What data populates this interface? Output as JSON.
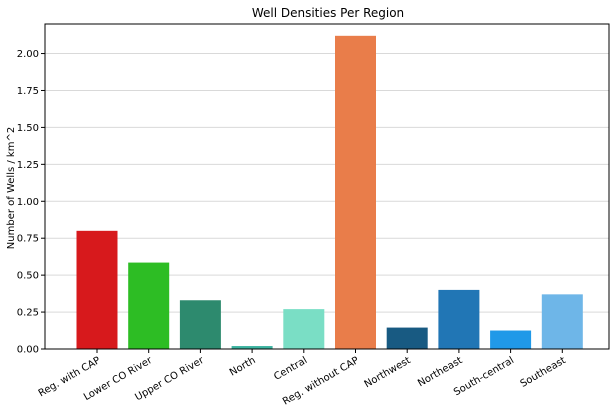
{
  "chart_data": {
    "type": "bar",
    "title": "Well Densities Per Region",
    "xlabel": "",
    "ylabel": "Number of Wells / km^2",
    "ylim": [
      0,
      2.2
    ],
    "yticks": [
      "0.00",
      "0.25",
      "0.50",
      "0.75",
      "1.00",
      "1.25",
      "1.50",
      "1.75",
      "2.00"
    ],
    "grid": "horizontal",
    "categories": [
      "Reg. with CAP",
      "Lower CO River",
      "Upper CO River",
      "North",
      "Central",
      "Reg. without CAP",
      "Northwest",
      "Northeast",
      "South-central",
      "Southeast"
    ],
    "values": [
      0.8,
      0.585,
      0.33,
      0.02,
      0.27,
      2.12,
      0.145,
      0.4,
      0.125,
      0.37
    ],
    "colors": [
      "#d7191c",
      "#2dbd24",
      "#2d8a6e",
      "#3cb3a0",
      "#7adec5",
      "#e97d4a",
      "#185a82",
      "#2176b5",
      "#2099e8",
      "#6eb6e8"
    ]
  }
}
